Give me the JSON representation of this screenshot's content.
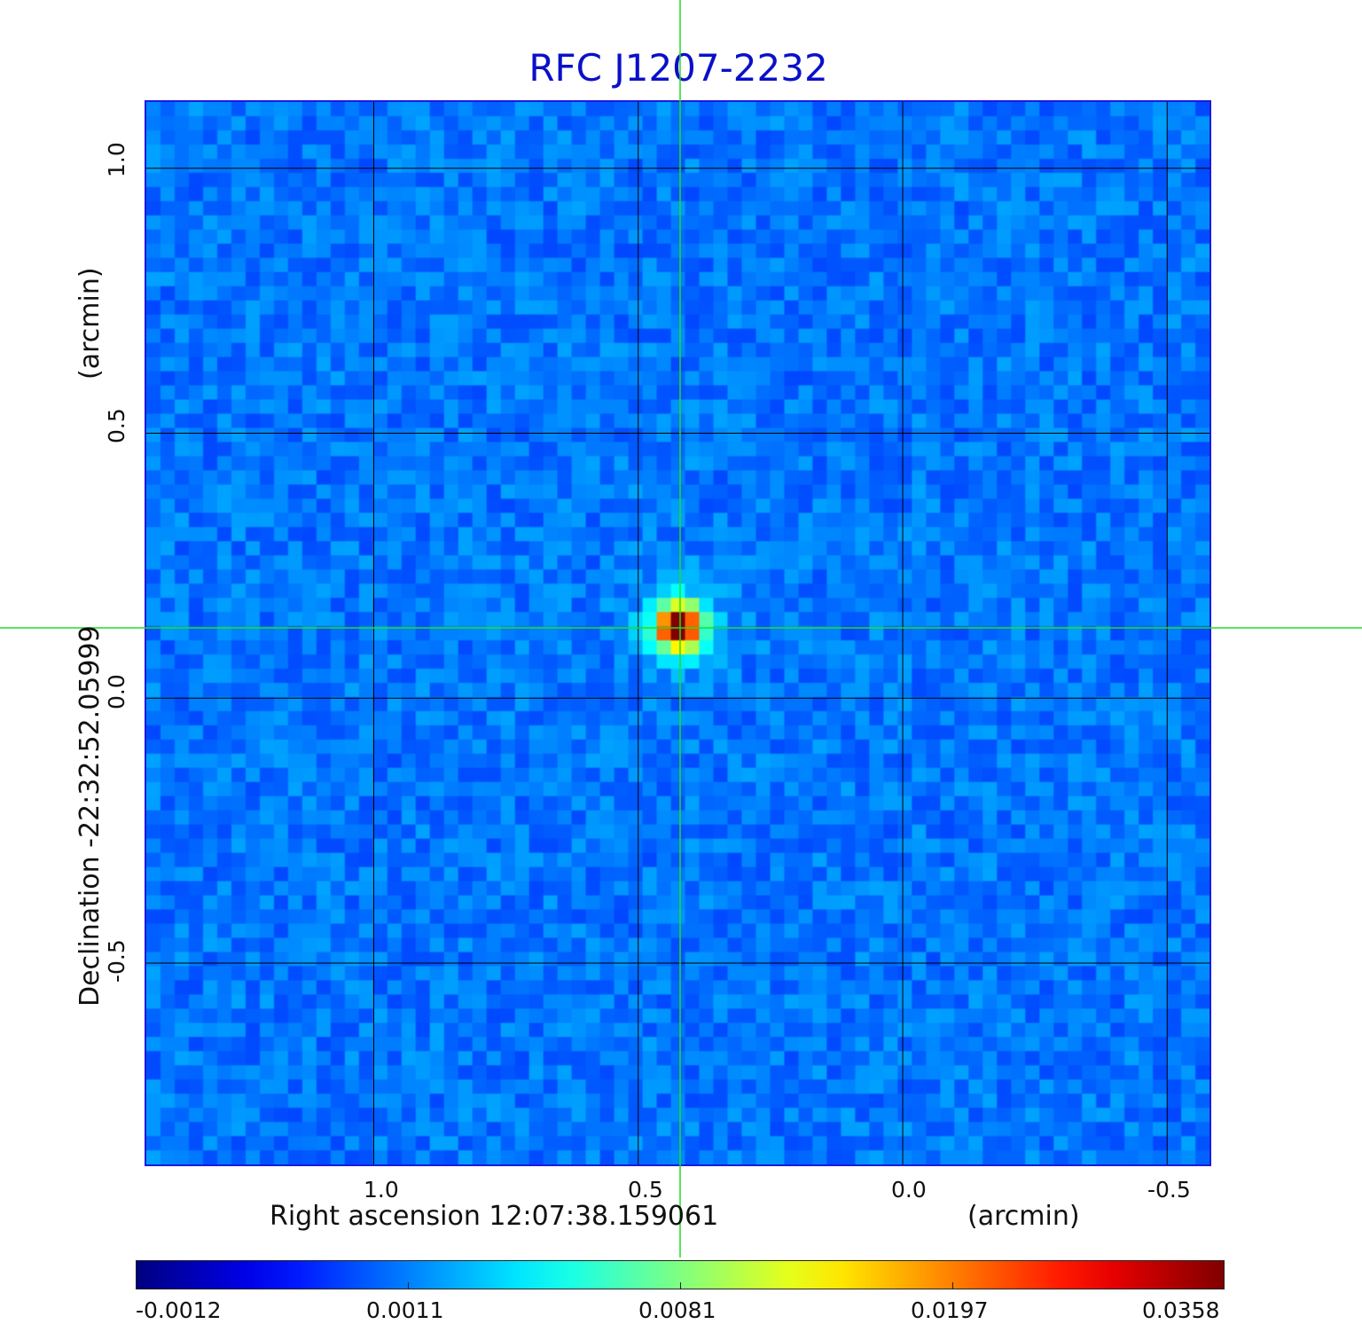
{
  "title": "RFC J1207-2232",
  "axes": {
    "x_label": "Right ascension  12:07:38.159061",
    "x_unit": "(arcmin)",
    "y_label": "Declination  -22:32:52.05999",
    "y_unit": "(arcmin)",
    "x_ticks": [
      "1.0",
      "0.5",
      "0.0",
      "-0.5"
    ],
    "y_ticks": [
      "1.0",
      "0.5",
      "0.0",
      "-0.5"
    ],
    "x_tick_values": [
      1.0,
      0.5,
      0.0,
      -0.5
    ],
    "y_tick_values": [
      1.0,
      0.5,
      0.0,
      -0.5
    ],
    "x_range": [
      1.43,
      -0.58
    ],
    "y_range": [
      -0.88,
      1.125
    ]
  },
  "source": {
    "ra_offset_arcmin": 0.425,
    "dec_offset_arcmin": 0.135
  },
  "colorbar": {
    "colormap": "jet",
    "labels": [
      "-0.0012",
      "0.0011",
      "0.0081",
      "0.0197",
      "0.0358"
    ],
    "range": [
      -0.0012,
      0.0358
    ]
  },
  "colors": {
    "title": "#0a10c8",
    "frame": "#1a1ae0",
    "background_map": "#1f6cf5",
    "crosshair": "#22dd22",
    "grid": "#000000"
  }
}
